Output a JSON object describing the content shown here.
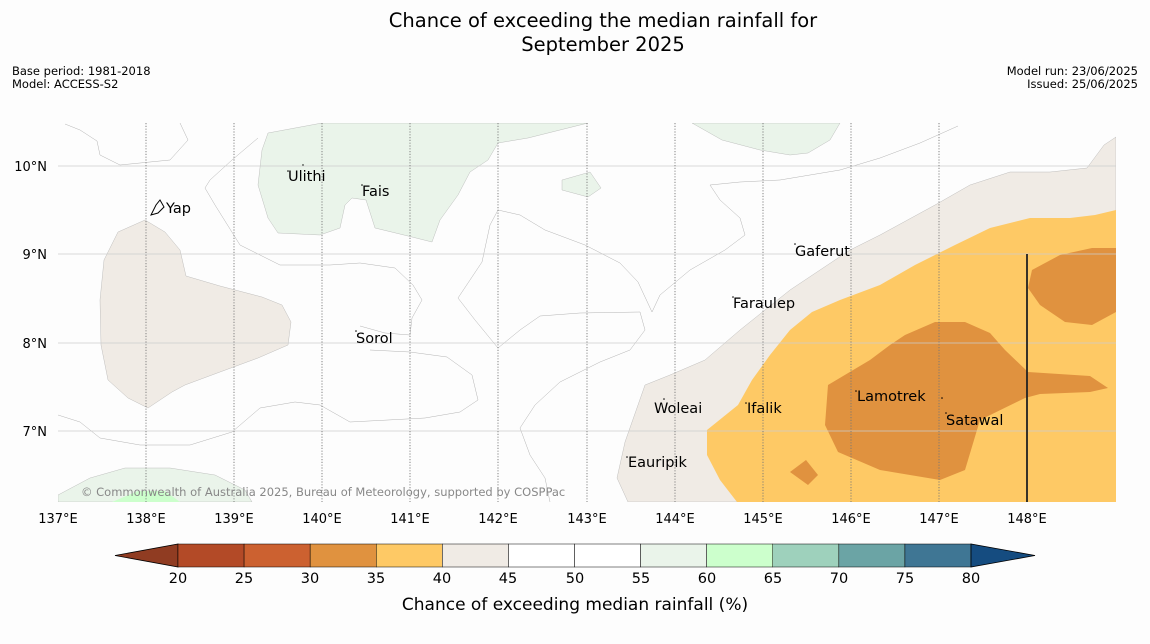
{
  "title_line1": "Chance of exceeding the median rainfall for",
  "title_line2": "September 2025",
  "meta": {
    "base_period": "Base period: 1981-2018",
    "model": "Model: ACCESS-S2",
    "model_run": "Model run: 23/06/2025",
    "issued": "Issued: 25/06/2025"
  },
  "lon_labels": [
    "137°E",
    "138°E",
    "139°E",
    "140°E",
    "141°E",
    "142°E",
    "143°E",
    "144°E",
    "145°E",
    "146°E",
    "147°E",
    "148°E"
  ],
  "lat_labels": [
    "10°N",
    "9°N",
    "8°N",
    "7°N"
  ],
  "places": [
    {
      "name": "Yap"
    },
    {
      "name": "Ulithi"
    },
    {
      "name": "Fais"
    },
    {
      "name": "Gaferut"
    },
    {
      "name": "Faraulep"
    },
    {
      "name": "Sorol"
    },
    {
      "name": "Woleai"
    },
    {
      "name": "Ifalik"
    },
    {
      "name": "Lamotrek"
    },
    {
      "name": "Satawal"
    },
    {
      "name": "Eauripik"
    }
  ],
  "copyright": "© Commonwealth of Australia 2025, Bureau of Meteorology, supported by COSPPac",
  "colorbar": {
    "title": "Chance of exceeding median rainfall (%)",
    "ticks": [
      "20",
      "25",
      "30",
      "35",
      "40",
      "45",
      "50",
      "55",
      "60",
      "65",
      "70",
      "75",
      "80"
    ],
    "colors": [
      "#b34a27",
      "#cc6130",
      "#e0923f",
      "#fec965",
      "#f0ebe5",
      "#ffffff",
      "#ffffff",
      "#eaf4ea",
      "#ccffcc",
      "#9ed1bc",
      "#6ba4a5",
      "#3f7694"
    ],
    "under_color": "#903c22",
    "over_color": "#154c80"
  }
}
